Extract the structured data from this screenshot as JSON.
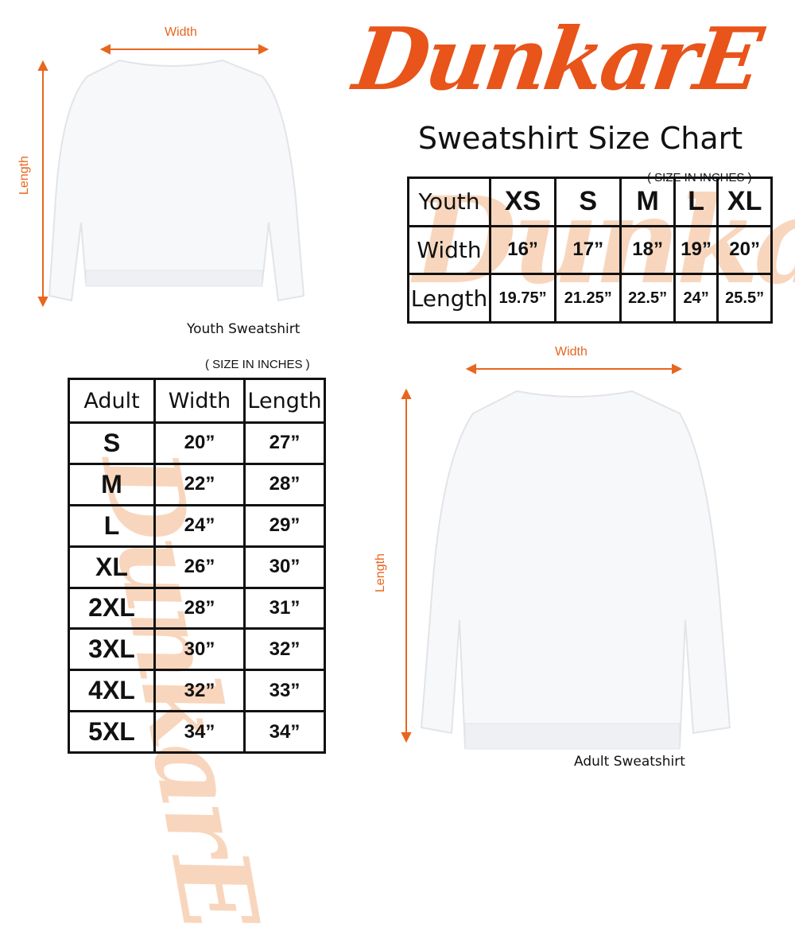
{
  "brand": {
    "logo_text": "DunkarE",
    "color": "#e8541a"
  },
  "title": "Sweatshirt Size Chart",
  "units_note": "( SIZE IN INCHES )",
  "youth": {
    "caption": "Youth Sweatshirt",
    "width_label": "Width",
    "length_label": "Length",
    "header": [
      "Youth",
      "XS",
      "S",
      "M",
      "L",
      "XL"
    ],
    "rows": [
      [
        "Width",
        "16”",
        "17”",
        "18”",
        "19”",
        "20”"
      ],
      [
        "Length",
        "19.75”",
        "21.25”",
        "22.5”",
        "24”",
        "25.5”"
      ]
    ]
  },
  "adult": {
    "caption": "Adult Sweatshirt",
    "width_label": "Width",
    "length_label": "Length",
    "header": [
      "Adult",
      "Width",
      "Length"
    ],
    "rows": [
      [
        "S",
        "20”",
        "27”"
      ],
      [
        "M",
        "22”",
        "28”"
      ],
      [
        "L",
        "24”",
        "29”"
      ],
      [
        "XL",
        "26”",
        "30”"
      ],
      [
        "2XL",
        "28”",
        "31”"
      ],
      [
        "3XL",
        "30”",
        "32”"
      ],
      [
        "4XL",
        "32”",
        "33”"
      ],
      [
        "5XL",
        "34”",
        "34”"
      ]
    ]
  }
}
